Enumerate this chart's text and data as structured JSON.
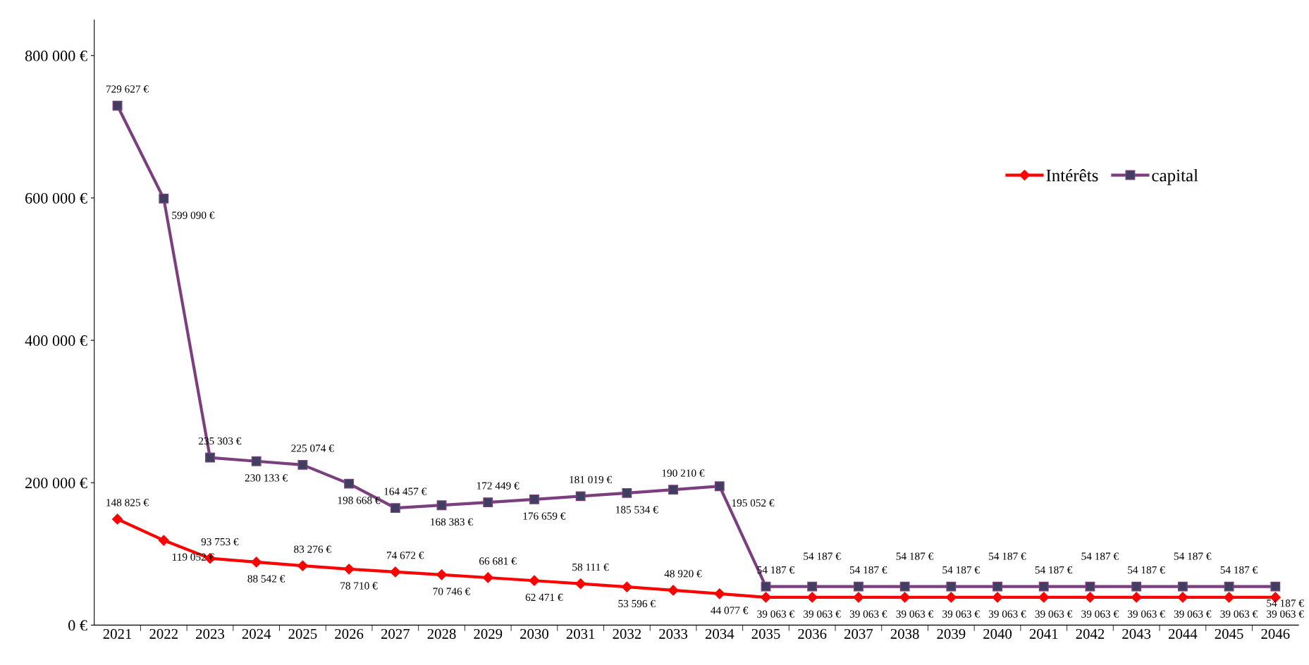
{
  "chart_data": {
    "type": "line",
    "categories": [
      "2021",
      "2022",
      "2023",
      "2024",
      "2025",
      "2026",
      "2027",
      "2028",
      "2029",
      "2030",
      "2031",
      "2032",
      "2033",
      "2034",
      "2035",
      "2036",
      "2037",
      "2038",
      "2039",
      "2040",
      "2041",
      "2042",
      "2043",
      "2044",
      "2045",
      "2046"
    ],
    "series": [
      {
        "name": "Intérêts",
        "color": "#ff0000",
        "marker": "diamond",
        "values": [
          148825,
          119052,
          93753,
          88542,
          83276,
          78710,
          74672,
          70746,
          66681,
          62471,
          58111,
          53596,
          48920,
          44077,
          39063,
          39063,
          39063,
          39063,
          39063,
          39063,
          39063,
          39063,
          39063,
          39063,
          39063,
          39063
        ],
        "value_labels": [
          "148 825 €",
          "119 052 €",
          "93 753 €",
          "88 542 €",
          "83 276 €",
          "78 710 €",
          "74 672 €",
          "70 746 €",
          "66 681 €",
          "62 471 €",
          "58 111 €",
          "53 596 €",
          "48 920 €",
          "44 077 €",
          "39 063 €",
          "39 063 €",
          "39 063 €",
          "39 063 €",
          "39 063 €",
          "39 063 €",
          "39 063 €",
          "39 063 €",
          "39 063 €",
          "39 063 €",
          "39 063 €",
          "39 063 €"
        ]
      },
      {
        "name": "capital",
        "color": "#7b3f7f",
        "marker": "square",
        "values": [
          729627,
          599090,
          235303,
          230133,
          225074,
          198668,
          164457,
          168383,
          172449,
          176659,
          181019,
          185534,
          190210,
          195052,
          54187,
          54187,
          54187,
          54187,
          54187,
          54187,
          54187,
          54187,
          54187,
          54187,
          54187,
          54187
        ],
        "value_labels": [
          "729 627 €",
          "599 090 €",
          "235 303 €",
          "230 133 €",
          "225 074 €",
          "198 668 €",
          "164 457 €",
          "168 383 €",
          "172 449 €",
          "176 659 €",
          "181 019 €",
          "185 534 €",
          "190 210 €",
          "195 052 €",
          "54 187 €",
          "54 187 €",
          "54 187 €",
          "54 187 €",
          "54 187 €",
          "54 187 €",
          "54 187 €",
          "54 187 €",
          "54 187 €",
          "54 187 €",
          "54 187 €",
          "54 187 €"
        ]
      }
    ],
    "ylim": [
      0,
      850000
    ],
    "yticks": [
      {
        "value": 0,
        "label": "0 €"
      },
      {
        "value": 200000,
        "label": "200 000 €"
      },
      {
        "value": 400000,
        "label": "400 000 €"
      },
      {
        "value": 600000,
        "label": "600 000 €"
      },
      {
        "value": 800000,
        "label": "800 000 €"
      }
    ],
    "grid": false,
    "legend": "top right",
    "line_style": "solid"
  }
}
